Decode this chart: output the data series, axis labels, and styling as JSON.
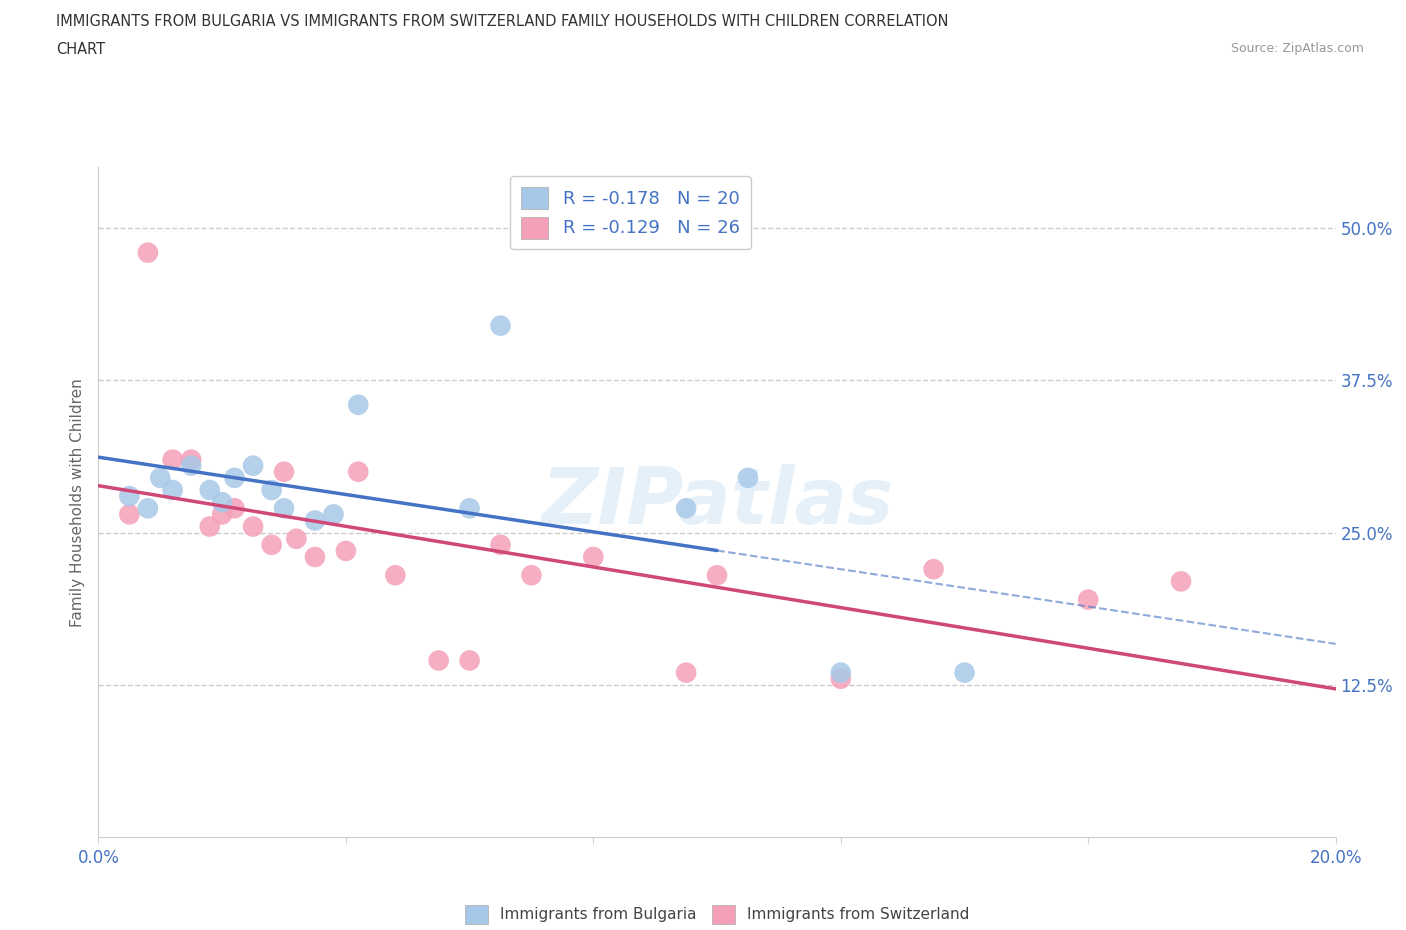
{
  "title_line1": "IMMIGRANTS FROM BULGARIA VS IMMIGRANTS FROM SWITZERLAND FAMILY HOUSEHOLDS WITH CHILDREN CORRELATION",
  "title_line2": "CHART",
  "source": "Source: ZipAtlas.com",
  "ylabel": "Family Households with Children",
  "xlim": [
    0.0,
    0.2
  ],
  "ylim": [
    0.0,
    0.55
  ],
  "yticks": [
    0.0,
    0.125,
    0.25,
    0.375,
    0.5
  ],
  "ytick_labels": [
    "",
    "12.5%",
    "25.0%",
    "37.5%",
    "50.0%"
  ],
  "xticks": [
    0.0,
    0.04,
    0.08,
    0.12,
    0.16,
    0.2
  ],
  "xtick_labels": [
    "0.0%",
    "",
    "",
    "",
    "",
    "20.0%"
  ],
  "r_bulgaria": -0.178,
  "n_bulgaria": 20,
  "r_switzerland": -0.129,
  "n_switzerland": 26,
  "bulgaria_color": "#a8c8e8",
  "switzerland_color": "#f4a0b8",
  "bulgaria_line_color": "#4472c4",
  "switzerland_line_color": "#d04878",
  "watermark": "ZIPatlas",
  "bulgaria_x": [
    0.005,
    0.008,
    0.01,
    0.012,
    0.015,
    0.018,
    0.02,
    0.022,
    0.025,
    0.028,
    0.03,
    0.035,
    0.038,
    0.042,
    0.06,
    0.065,
    0.095,
    0.105,
    0.12,
    0.14
  ],
  "bulgaria_y": [
    0.28,
    0.27,
    0.295,
    0.285,
    0.305,
    0.285,
    0.275,
    0.295,
    0.305,
    0.285,
    0.27,
    0.26,
    0.265,
    0.355,
    0.27,
    0.42,
    0.27,
    0.295,
    0.135,
    0.135
  ],
  "switzerland_x": [
    0.005,
    0.008,
    0.012,
    0.015,
    0.018,
    0.02,
    0.022,
    0.025,
    0.028,
    0.03,
    0.032,
    0.035,
    0.04,
    0.042,
    0.048,
    0.055,
    0.06,
    0.065,
    0.07,
    0.08,
    0.095,
    0.1,
    0.12,
    0.135,
    0.16,
    0.175
  ],
  "switzerland_y": [
    0.265,
    0.48,
    0.31,
    0.31,
    0.255,
    0.265,
    0.27,
    0.255,
    0.24,
    0.3,
    0.245,
    0.23,
    0.235,
    0.3,
    0.215,
    0.145,
    0.145,
    0.24,
    0.215,
    0.23,
    0.135,
    0.215,
    0.13,
    0.22,
    0.195,
    0.21
  ],
  "legend_r_label1": "R = -0.178   N = 20",
  "legend_r_label2": "R = -0.129   N = 26",
  "bottom_legend_label1": "Immigrants from Bulgaria",
  "bottom_legend_label2": "Immigrants from Switzerland"
}
